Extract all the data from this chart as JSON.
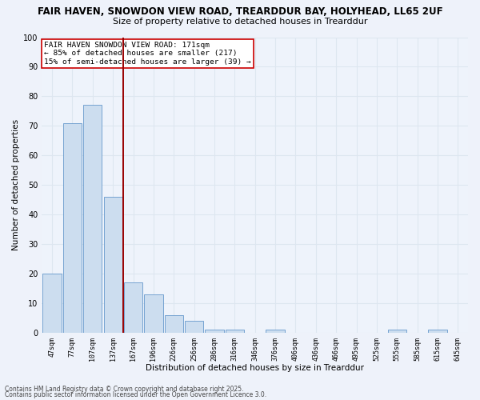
{
  "title_line1": "FAIR HAVEN, SNOWDON VIEW ROAD, TREARDDUR BAY, HOLYHEAD, LL65 2UF",
  "title_line2": "Size of property relative to detached houses in Trearddur",
  "xlabel": "Distribution of detached houses by size in Trearddur",
  "ylabel_full": "Number of detached properties",
  "categories": [
    "47sqm",
    "77sqm",
    "107sqm",
    "137sqm",
    "167sqm",
    "196sqm",
    "226sqm",
    "256sqm",
    "286sqm",
    "316sqm",
    "346sqm",
    "376sqm",
    "406sqm",
    "436sqm",
    "466sqm",
    "495sqm",
    "525sqm",
    "555sqm",
    "585sqm",
    "615sqm",
    "645sqm"
  ],
  "values": [
    20,
    71,
    77,
    46,
    17,
    13,
    6,
    4,
    1,
    1,
    0,
    1,
    0,
    0,
    0,
    0,
    0,
    1,
    0,
    1,
    0
  ],
  "bar_color": "#ccddef",
  "bar_edge_color": "#6699cc",
  "vline_index": 3.5,
  "vline_color": "#990000",
  "annotation_text": "FAIR HAVEN SNOWDON VIEW ROAD: 171sqm\n← 85% of detached houses are smaller (217)\n15% of semi-detached houses are larger (39) →",
  "annotation_box_color": "#ffffff",
  "annotation_box_edge": "#cc0000",
  "ylim": [
    0,
    100
  ],
  "yticks": [
    0,
    10,
    20,
    30,
    40,
    50,
    60,
    70,
    80,
    90,
    100
  ],
  "footer_line1": "Contains HM Land Registry data © Crown copyright and database right 2025.",
  "footer_line2": "Contains public sector information licensed under the Open Government Licence 3.0.",
  "background_color": "#eef2fa",
  "plot_bg_color": "#eef3fb",
  "grid_color": "#dde6f0",
  "title_fontsize": 8.5,
  "subtitle_fontsize": 8,
  "tick_fontsize": 6,
  "ylabel_fontsize": 7.5,
  "xlabel_fontsize": 7.5,
  "ann_fontsize": 6.8,
  "footer_fontsize": 5.5
}
